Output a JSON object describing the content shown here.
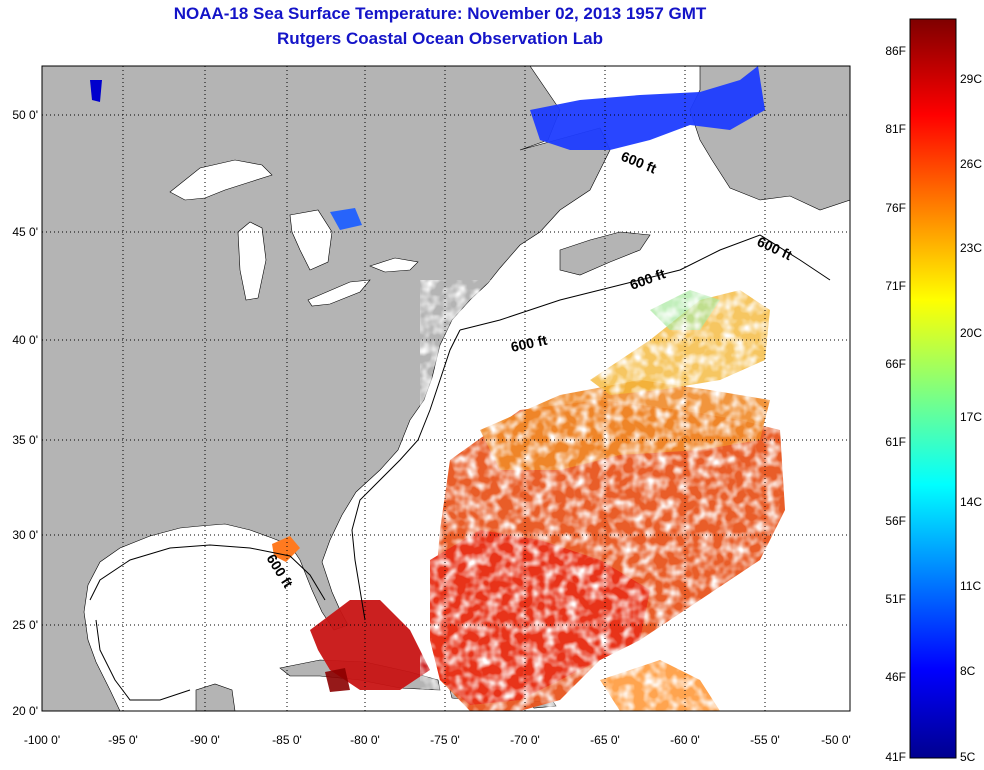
{
  "header": {
    "title": "NOAA-18 Sea Surface Temperature:  November 02, 2013 1957 GMT",
    "subtitle": "Rutgers Coastal Ocean Observation Lab"
  },
  "map": {
    "lon_ticks": [
      "-100 0'",
      "-95 0'",
      "-90 0'",
      "-85 0'",
      "-80 0'",
      "-75 0'",
      "-70 0'",
      "-65 0'",
      "-60 0'",
      "-55 0'",
      "-50 0'"
    ],
    "lat_ticks": [
      "20 0'",
      "25 0'",
      "30 0'",
      "35 0'",
      "40 0'",
      "45 0'",
      "50 0'"
    ],
    "contour_label": "600 ft",
    "colors": {
      "land": "#b4b4b4",
      "ocean_nodata": "#ffffff",
      "grid": "#000000"
    }
  },
  "colorbar": {
    "fahrenheit": [
      "86F",
      "81F",
      "76F",
      "71F",
      "66F",
      "61F",
      "56F",
      "51F",
      "46F",
      "41F"
    ],
    "celsius": [
      "29C",
      "26C",
      "23C",
      "20C",
      "17C",
      "14C",
      "11C",
      "8C",
      "5C"
    ],
    "colors": [
      "#7f0000",
      "#ff0000",
      "#ff8000",
      "#ffff00",
      "#80ff80",
      "#00ffff",
      "#0080ff",
      "#0000ff",
      "#00008f"
    ]
  }
}
